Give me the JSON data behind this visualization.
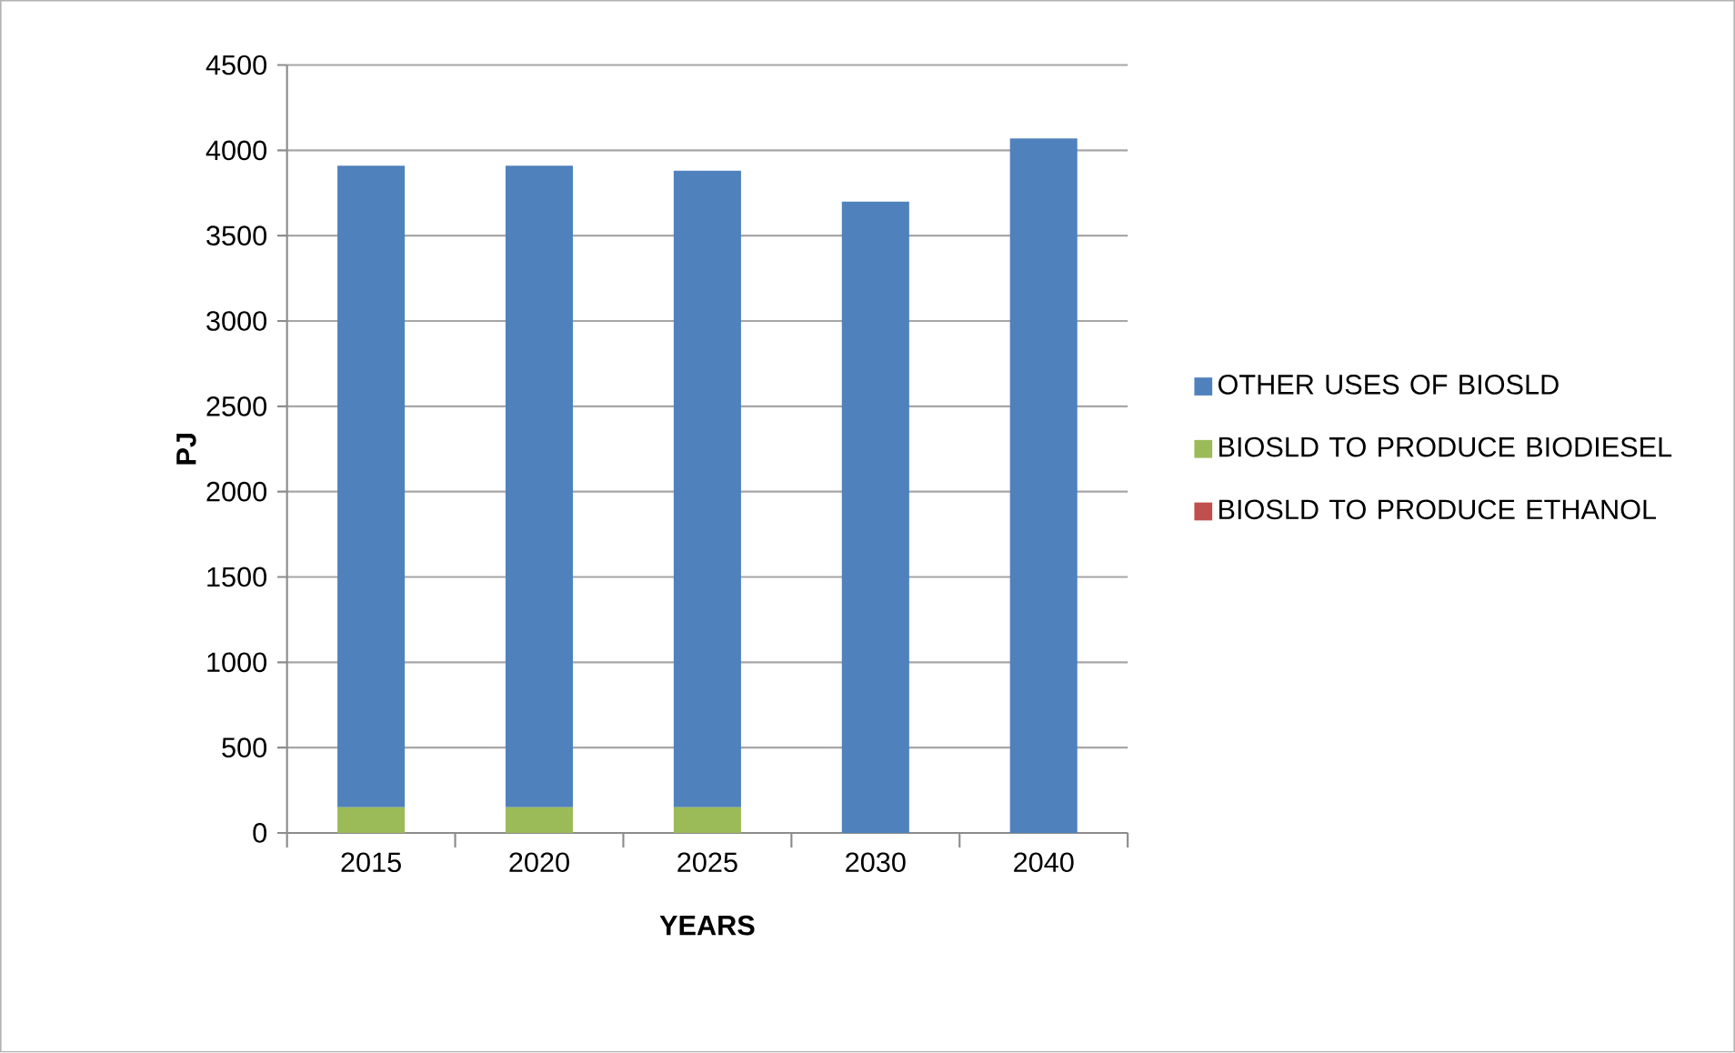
{
  "chart_data": {
    "type": "bar",
    "stacked": true,
    "xlabel": "YEARS",
    "ylabel": "PJ",
    "categories": [
      "2015",
      "2020",
      "2025",
      "2030",
      "2040"
    ],
    "series": [
      {
        "name": "BIOSLD TO PRODUCE ETHANOL",
        "color": "#c0504d",
        "values": [
          0,
          0,
          0,
          0,
          0
        ]
      },
      {
        "name": "BIOSLD TO PRODUCE BIODIESEL",
        "color": "#9bbb59",
        "values": [
          150,
          150,
          150,
          0,
          0
        ]
      },
      {
        "name": "OTHER USES OF BIOSLD",
        "color": "#4f81bd",
        "values": [
          3760,
          3760,
          3730,
          3700,
          4070
        ]
      }
    ],
    "ylim": [
      0,
      4500
    ],
    "yticks": [
      0,
      500,
      1000,
      1500,
      2000,
      2500,
      3000,
      3500,
      4000,
      4500
    ],
    "grid": "y",
    "legend": "right"
  }
}
